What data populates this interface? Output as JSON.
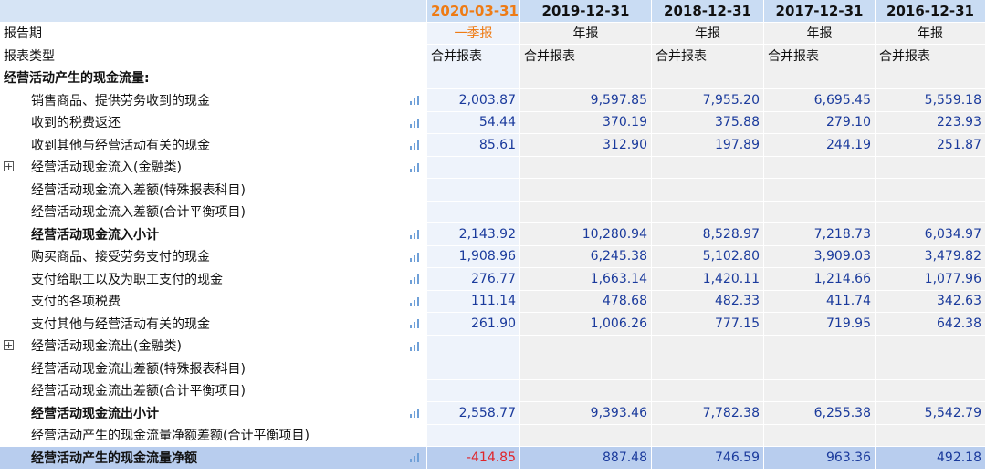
{
  "dates": [
    "2020-03-31",
    "2019-12-31",
    "2018-12-31",
    "2017-12-31",
    "2016-12-31"
  ],
  "report_period_label": "报告期",
  "report_periods": [
    "一季报",
    "年报",
    "年报",
    "年报",
    "年报"
  ],
  "report_type_label": "报表类型",
  "report_types": [
    "合并报表",
    "合并报表",
    "合并报表",
    "合并报表",
    "合并报表"
  ],
  "section_title": "经营活动产生的现金流量:",
  "rows": [
    {
      "label": "销售商品、提供劳务收到的现金",
      "values": [
        "2,003.87",
        "9,597.85",
        "7,955.20",
        "6,695.45",
        "5,559.18"
      ]
    },
    {
      "label": "收到的税费返还",
      "values": [
        "54.44",
        "370.19",
        "375.88",
        "279.10",
        "223.93"
      ]
    },
    {
      "label": "收到其他与经营活动有关的现金",
      "values": [
        "85.61",
        "312.90",
        "197.89",
        "244.19",
        "251.87"
      ]
    },
    {
      "label": "经营活动现金流入(金融类)",
      "values": [
        "",
        "",
        "",
        "",
        ""
      ]
    },
    {
      "label": "经营活动现金流入差额(特殊报表科目)",
      "values": [
        "",
        "",
        "",
        "",
        ""
      ]
    },
    {
      "label": "经营活动现金流入差额(合计平衡项目)",
      "values": [
        "",
        "",
        "",
        "",
        ""
      ]
    },
    {
      "label": "经营活动现金流入小计",
      "values": [
        "2,143.92",
        "10,280.94",
        "8,528.97",
        "7,218.73",
        "6,034.97"
      ]
    },
    {
      "label": "购买商品、接受劳务支付的现金",
      "values": [
        "1,908.96",
        "6,245.38",
        "5,102.80",
        "3,909.03",
        "3,479.82"
      ]
    },
    {
      "label": "支付给职工以及为职工支付的现金",
      "values": [
        "276.77",
        "1,663.14",
        "1,420.11",
        "1,214.66",
        "1,077.96"
      ]
    },
    {
      "label": "支付的各项税费",
      "values": [
        "111.14",
        "478.68",
        "482.33",
        "411.74",
        "342.63"
      ]
    },
    {
      "label": "支付其他与经营活动有关的现金",
      "values": [
        "261.90",
        "1,006.26",
        "777.15",
        "719.95",
        "642.38"
      ]
    },
    {
      "label": "经营活动现金流出(金融类)",
      "values": [
        "",
        "",
        "",
        "",
        ""
      ]
    },
    {
      "label": "经营活动现金流出差额(特殊报表科目)",
      "values": [
        "",
        "",
        "",
        "",
        ""
      ]
    },
    {
      "label": "经营活动现金流出差额(合计平衡项目)",
      "values": [
        "",
        "",
        "",
        "",
        ""
      ]
    },
    {
      "label": "经营活动现金流出小计",
      "values": [
        "2,558.77",
        "9,393.46",
        "7,782.38",
        "6,255.38",
        "5,542.79"
      ]
    },
    {
      "label": "经营活动产生的现金流量净额差额(合计平衡项目)",
      "values": [
        "",
        "",
        "",
        "",
        ""
      ]
    },
    {
      "label": "经营活动产生的现金流量净额",
      "values": [
        "-414.85",
        "887.48",
        "746.59",
        "963.36",
        "492.18"
      ]
    }
  ],
  "colors": {
    "header_bg": "#c9dcf3",
    "active_date": "#ee7b14",
    "value_text": "#1a3a9c",
    "negative": "#e0242a",
    "total_row_bg": "#b8cdee"
  },
  "icons": {
    "chart": "bar-chart-icon",
    "expand": "expand-plus-icon"
  },
  "expand_symbol": "+"
}
